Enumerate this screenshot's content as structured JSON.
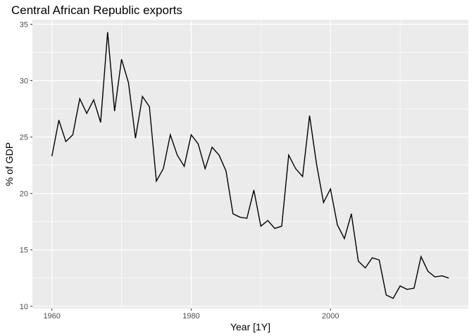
{
  "chart_data": {
    "type": "line",
    "title": "Central African Republic exports",
    "xlabel": "Year [1Y]",
    "ylabel": "% of GDP",
    "xlim": [
      1957.2,
      2019.8
    ],
    "ylim": [
      9.8,
      35.4
    ],
    "x_ticks": [
      1960,
      1980,
      2000
    ],
    "y_ticks": [
      10,
      15,
      20,
      25,
      30,
      35
    ],
    "grid": true,
    "background": "#ebebeb",
    "grid_color": "#ffffff",
    "line_color": "#000000",
    "series": [
      {
        "x": [
          1960,
          1961,
          1962,
          1963,
          1964,
          1965,
          1966,
          1967,
          1968,
          1969,
          1970,
          1971,
          1972,
          1973,
          1974,
          1975,
          1976,
          1977,
          1978,
          1979,
          1980,
          1981,
          1982,
          1983,
          1984,
          1985,
          1986,
          1987,
          1988,
          1989,
          1990,
          1991,
          1992,
          1993,
          1994,
          1995,
          1996,
          1997,
          1998,
          1999,
          2000,
          2001,
          2002,
          2003,
          2004,
          2005,
          2006,
          2007,
          2008,
          2009,
          2010,
          2011,
          2012,
          2013,
          2014,
          2015,
          2016,
          2017
        ],
        "values": [
          23.3,
          26.5,
          24.6,
          25.2,
          28.4,
          27.1,
          28.3,
          26.3,
          34.3,
          27.3,
          31.9,
          29.8,
          24.9,
          28.6,
          27.7,
          21.1,
          22.2,
          25.2,
          23.4,
          22.4,
          25.2,
          24.4,
          22.2,
          24.1,
          23.4,
          22.0,
          18.2,
          17.9,
          17.8,
          20.3,
          17.1,
          17.6,
          16.9,
          17.1,
          23.4,
          22.2,
          21.5,
          26.9,
          22.6,
          19.2,
          20.4,
          17.2,
          16.0,
          18.2,
          14.0,
          13.4,
          14.3,
          14.1,
          11.0,
          10.7,
          11.8,
          11.5,
          11.6,
          14.4,
          13.1,
          12.6,
          12.7,
          12.5
        ]
      }
    ]
  }
}
